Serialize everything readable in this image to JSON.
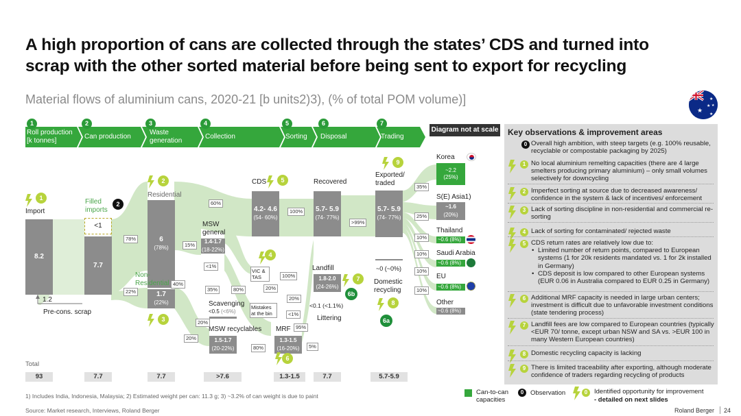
{
  "title": "A high proportion of cans are collected through the states’ CDS and turned into scrap with the other sorted material before being sent to export for recycling",
  "subtitle": "Material flows of aluminium cans, 2020-21 [b units2)3), (% of total POM volume)]",
  "stages": [
    {
      "num": "1",
      "label": "Roll production [k tonnes]"
    },
    {
      "num": "2",
      "label": "Can production"
    },
    {
      "num": "3",
      "label": "Waste generation"
    },
    {
      "num": "4",
      "label": "Collection"
    },
    {
      "num": "5",
      "label": "Sorting"
    },
    {
      "num": "6",
      "label": "Disposal"
    },
    {
      "num": "7",
      "label": "Trading"
    }
  ],
  "scale_note": "Diagram not at scale",
  "panel_title": "Key observations & improvement areas",
  "observations": [
    {
      "num": "0",
      "text": "Overall high ambition, with steep targets (e.g. 100% reusable, recyclable or compostable packaging by 2025)"
    },
    {
      "num": "1",
      "text": "No local aluminium remelting capacities (there are 4 large smelters producing primary aluminium) – only small volumes selectively for downcycling"
    },
    {
      "num": "2",
      "text": "Imperfect sorting at source due to decreased awareness/ confidence in the system & lack of incentives/ enforcement"
    },
    {
      "num": "3",
      "text": "Lack of sorting discipline in non-residential and commercial re-sorting"
    },
    {
      "num": "4",
      "text": "Lack of sorting for contaminated/ rejected waste"
    },
    {
      "num": "5",
      "text": "CDS return rates are relatively low due to:",
      "bullets": [
        "Limited number of return points, compared to European systems (1 for 20k residents mandated vs. 1 for 2k installed in Germany)",
        "CDS deposit is low compared to other European systems (EUR 0.06 in Australia compared to EUR 0.25 in Germany)"
      ]
    },
    {
      "num": "6",
      "text": "Additional MRF capacity is needed in large urban centers; investment is difficult due to unfavorable investment conditions (state tendering process)"
    },
    {
      "num": "7",
      "text": "Landfill fees are low compared to European countries (typically <EUR 70/ tonne, except urban NSW and SA vs. >EUR 100 in many Western European countries)"
    },
    {
      "num": "8",
      "text": "Domestic recycling capacity is lacking"
    },
    {
      "num": "9",
      "text": "There is limited traceability after exporting, although moderate confidence of traders regarding recycling of products"
    }
  ],
  "nodes": {
    "import": {
      "label": "Import",
      "value": "8.2"
    },
    "filled_imports": {
      "label": "Filled imports",
      "value": "<1"
    },
    "can_prod": {
      "value": "7.7"
    },
    "residential": {
      "label": "Residential",
      "value": "6",
      "pct": "(78%)"
    },
    "non_residential": {
      "label": "Non- Residential",
      "value": "1.7",
      "pct": "(22%)"
    },
    "msw_general": {
      "label": "MSW general",
      "value": "1.4-1.7",
      "pct": "(18-22%)"
    },
    "cds": {
      "label": "CDS",
      "value": "4.2- 4.6",
      "pct": "(54- 60%)"
    },
    "recovered": {
      "label": "Recovered",
      "value": "5.7- 5.9",
      "pct": "(74- 77%)"
    },
    "exported": {
      "label": "Exported/ traded",
      "value": "5.7- 5.9",
      "pct": "(74- 77%)"
    },
    "scavenging": {
      "label": "Scavenging",
      "value": "<0.5",
      "pct": "(<6%)"
    },
    "vic_tas": {
      "label": "VIC & TAS"
    },
    "mistakes": {
      "label": "Mistakes at the bin"
    },
    "msw_recyclables": {
      "label": "MSW recyclables",
      "value": "1.5-1.7",
      "pct": "(20-22%)"
    },
    "mrf": {
      "label": "MRF",
      "value": "1.3-1.5",
      "pct": "(16-20%)"
    },
    "landfill": {
      "label": "Landfill",
      "value": "1.8-2.0",
      "pct": "(24-26%)"
    },
    "littering": {
      "label": "Littering",
      "value": "<0.1",
      "pct": "(<1.1%)"
    },
    "domestic": {
      "label": "Domestic recycling",
      "value": "~0",
      "pct": "(~0%)"
    },
    "pre_cons": {
      "label": "Pre-cons. scrap",
      "value": "1.2"
    }
  },
  "flow_pcts": {
    "res_78": "78%",
    "nonres_22": "22%",
    "res_60": "60%",
    "res_15": "15%",
    "res_lt1": "<1%",
    "nonres_40": "40%",
    "nonres_20": "20%",
    "msw_35": "35%",
    "msw_80": "80%",
    "msw_20a": "20%",
    "msw_20b": "20%",
    "msw_20c": "20%",
    "cds_100": "100%",
    "vic_100": "100%",
    "mist_lt1": "<1%",
    "mrf_95": "95%",
    "mrf_5": "5%",
    "recyc_80": "80%",
    "rec_99": ">99%",
    "ex_35": "35%",
    "ex_25": "25%",
    "ex_10a": "10%",
    "ex_10b": "10%",
    "ex_10c": "10%",
    "ex_10d": "10%"
  },
  "destinations": [
    {
      "name": "Korea",
      "value": "~2.2",
      "pct": "(25%)"
    },
    {
      "name": "S(E) Asia1)",
      "value": "~1.6",
      "pct": "(20%)"
    },
    {
      "name": "Thailand",
      "value": "~0.6 (8%)"
    },
    {
      "name": "Saudi Arabia",
      "value": "~0.6 (8%)"
    },
    {
      "name": "EU",
      "value": "~0.6 (8%)"
    },
    {
      "name": "Other",
      "value": "~0.6 (8%)"
    }
  ],
  "totals_label": "Total",
  "totals": [
    "93",
    "7.7",
    "7.7",
    ">7.6",
    "1.3-1.5",
    "7.7",
    "5.7-5.9"
  ],
  "opp_markers": [
    "1",
    "2",
    "3",
    "4",
    "5",
    "6",
    "7",
    "8",
    "9"
  ],
  "obs_marker": "2",
  "sub_markers": [
    "6a",
    "6b"
  ],
  "legend": {
    "can_to_can": "Can-to-can capacities",
    "observation": "Observation",
    "obs_num": "0",
    "opp_num": "0",
    "opportunity_line1": "Identified opportunity for improvement",
    "opportunity_line2": "- detailed on next slides"
  },
  "footnote": "1) Includes India, Indonesia, Malaysia; 2) Estimated weight per can: 11.3 g; 3) ~3.2% of can weight is due to paint",
  "source": "Source: Market research, Interviews, Roland Berger",
  "brand": "Roland Berger",
  "page_number": "24",
  "colors": {
    "green": "#35a73c",
    "lime": "#b7d33c",
    "bar": "#8c8c8c",
    "flow": "#cfe6c4"
  }
}
